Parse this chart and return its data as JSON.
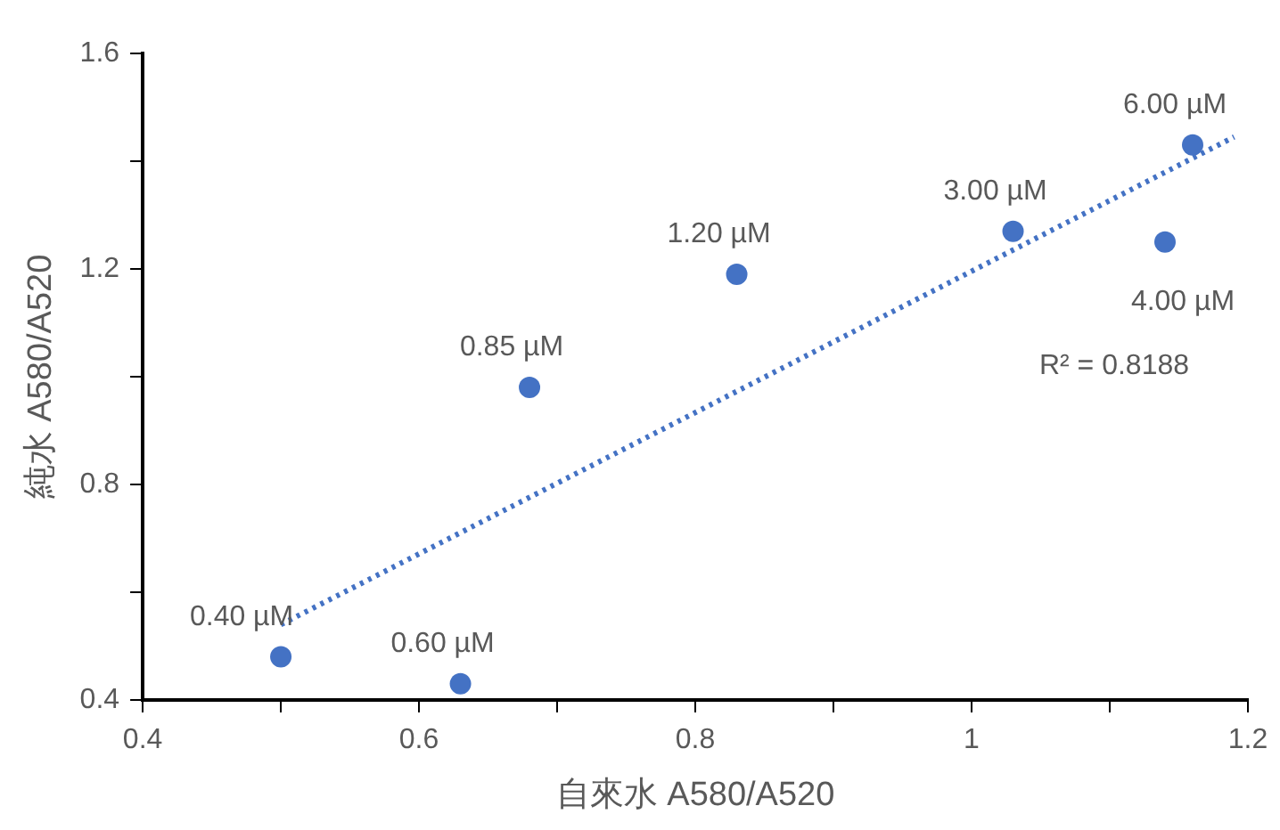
{
  "chart_data": {
    "type": "scatter",
    "xlabel": "自來水 A580/A520",
    "ylabel": "純水 A580/A520",
    "xlim": [
      0.4,
      1.2
    ],
    "xticks": [
      0.4,
      {
        "value": 0.5,
        "label": null
      },
      0.6,
      {
        "value": 0.7,
        "label": null
      },
      0.8,
      {
        "value": 0.9,
        "label": null
      },
      1,
      {
        "value": 1.1,
        "label": null
      },
      1.2
    ],
    "ylim": [
      0.4,
      1.6
    ],
    "yticks": [
      0.4,
      {
        "value": 0.6,
        "label": null
      },
      0.8,
      {
        "value": 1.0,
        "label": null
      },
      1.2,
      {
        "value": 1.4,
        "label": null
      },
      1.6
    ],
    "grid": false,
    "legend": false,
    "series": [
      {
        "type": "scatter",
        "color": "#4472c4",
        "marker": "circle",
        "x": [
          0.5,
          0.63,
          0.68,
          0.83,
          1.03,
          1.14,
          1.16
        ],
        "values": [
          0.48,
          0.43,
          0.98,
          1.19,
          1.27,
          1.25,
          1.43
        ]
      },
      {
        "type": "line",
        "color": "#4472c4",
        "marker": "none",
        "line_style": "dotted",
        "x": [
          0.5,
          1.19
        ],
        "values": [
          0.54,
          1.445
        ]
      }
    ],
    "annotations": [
      {
        "text": "0.40 µM",
        "x": 0.5,
        "y": 0.48
      },
      {
        "text": "0.60 µM",
        "x": 0.63,
        "y": 0.43
      },
      {
        "text": "0.85 µM",
        "x": 0.68,
        "y": 0.98
      },
      {
        "text": "1.20 µM",
        "x": 0.83,
        "y": 1.19
      },
      {
        "text": "3.00 µM",
        "x": 1.03,
        "y": 1.27
      },
      {
        "text": "4.00 µM",
        "x": 1.14,
        "y": 1.25
      },
      {
        "text": "6.00 µM",
        "x": 1.16,
        "y": 1.43
      },
      "R² = 0.8188"
    ]
  }
}
